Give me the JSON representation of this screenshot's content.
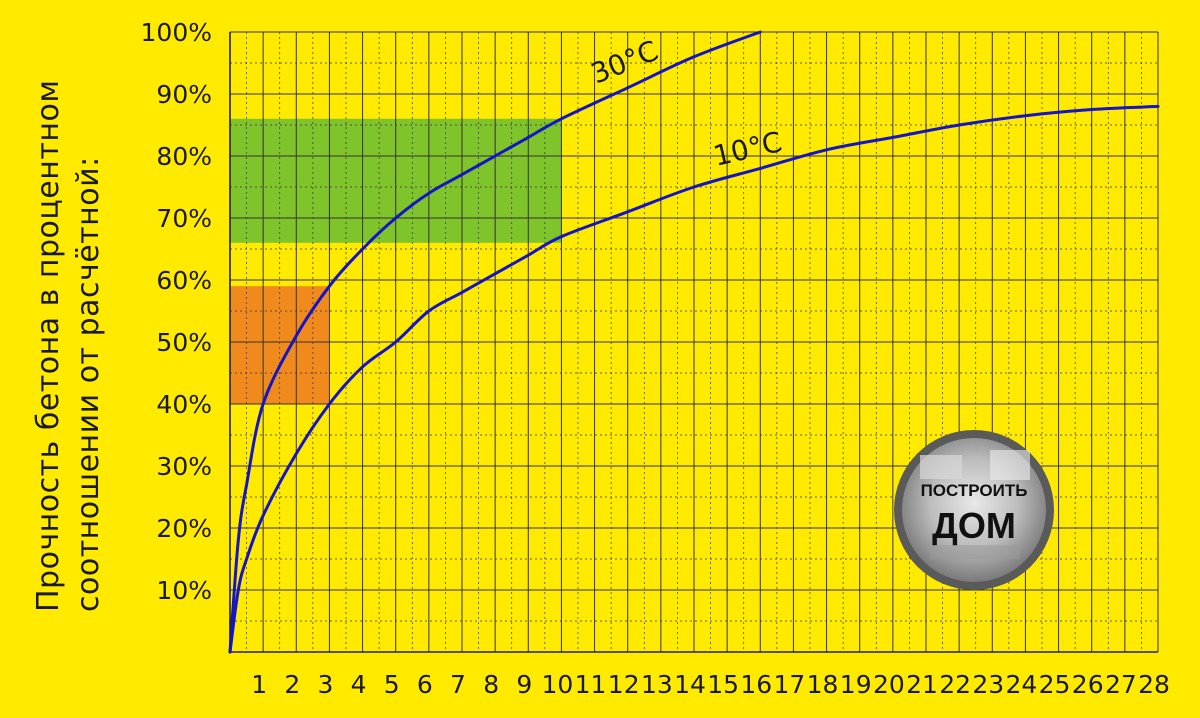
{
  "chart_data": {
    "type": "line",
    "ylabel_lines": [
      "Прочность бетона в процентном",
      "соотношении от расчётной:"
    ],
    "x_ticks": [
      "1",
      "2",
      "3",
      "4",
      "5",
      "6",
      "7",
      "8",
      "9",
      "10",
      "11",
      "12",
      "13",
      "14",
      "15",
      "16",
      "17",
      "18",
      "19",
      "20",
      "21",
      "22",
      "23",
      "24",
      "25",
      "26",
      "27",
      "28"
    ],
    "highlight_tick": "3",
    "y_ticks": [
      "10%",
      "20%",
      "30%",
      "40%",
      "50%",
      "60%",
      "70%",
      "80%",
      "90%",
      "100%"
    ],
    "xlim": [
      0,
      28
    ],
    "ylim": [
      0,
      100
    ],
    "series": [
      {
        "name": "30°C",
        "x": [
          0,
          0.25,
          0.5,
          1,
          2,
          3,
          4,
          5,
          6,
          7,
          8,
          9,
          10,
          12,
          14,
          16
        ],
        "values": [
          0,
          18,
          27,
          40,
          51,
          59,
          65,
          70,
          74,
          77,
          80,
          83,
          86,
          91,
          96,
          100
        ]
      },
      {
        "name": "10°C",
        "x": [
          0,
          0.25,
          0.5,
          1,
          2,
          3,
          4,
          5,
          6,
          7,
          8,
          9,
          10,
          12,
          14,
          16,
          18,
          20,
          22,
          24,
          26,
          28
        ],
        "values": [
          0,
          10,
          15,
          22,
          32,
          40,
          46,
          50,
          55,
          58,
          61,
          64,
          67,
          71,
          75,
          78,
          81,
          83,
          85,
          86.5,
          87.5,
          88
        ]
      }
    ],
    "regions": [
      {
        "x_range": [
          0,
          10
        ],
        "y_range": [
          66,
          86
        ],
        "color": "#7EC42A"
      },
      {
        "x_range": [
          0,
          3
        ],
        "y_range": [
          40,
          59
        ],
        "color": "#F08A1C"
      }
    ],
    "grid": true,
    "colors": {
      "curve": "#1515C8",
      "grid": "#333333",
      "highlight_tick": "#E5141E"
    }
  },
  "badge": {
    "line1": "ПОСТРОИТЬ",
    "line2": "ДОМ"
  }
}
